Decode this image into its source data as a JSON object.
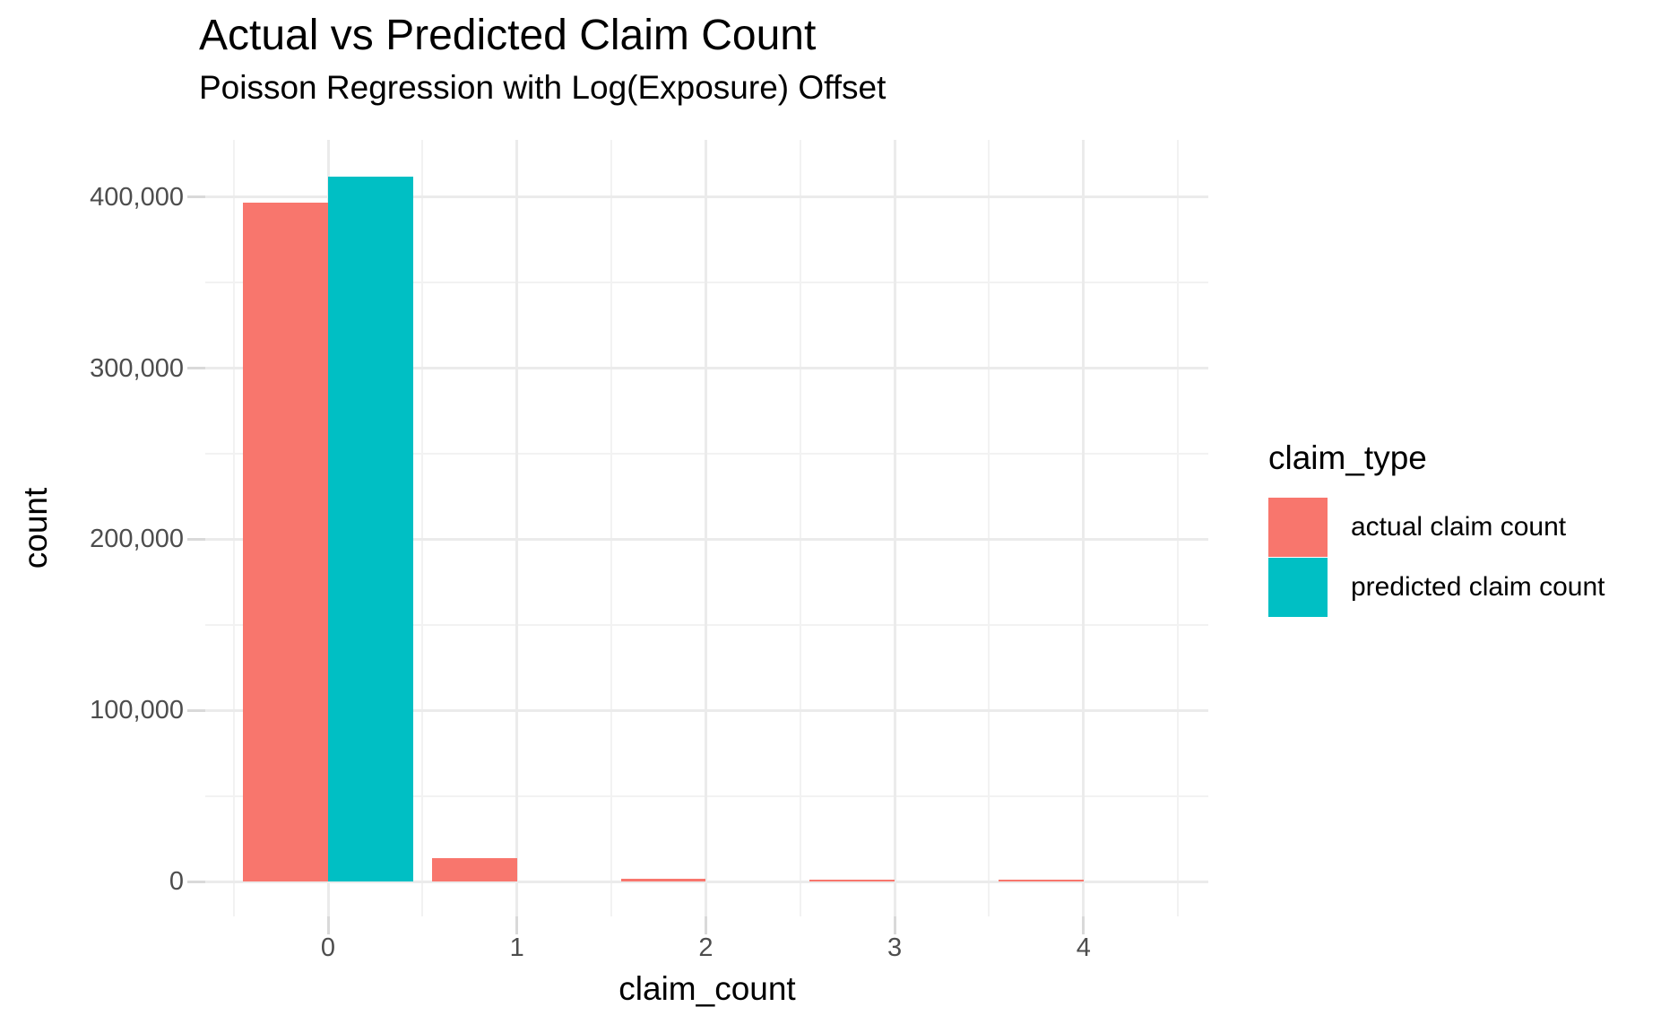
{
  "chart_data": {
    "type": "bar",
    "title": "Actual vs Predicted Claim Count",
    "subtitle": "Poisson Regression with Log(Exposure) Offset",
    "xlabel": "claim_count",
    "ylabel": "count",
    "categories": [
      0,
      1,
      2,
      3,
      4
    ],
    "series": [
      {
        "name": "actual claim count",
        "color": "#F8766D",
        "values": [
          397000,
          13600,
          1500,
          700,
          500
        ]
      },
      {
        "name": "predicted claim count",
        "color": "#00BFC4",
        "values": [
          412000,
          0,
          0,
          0,
          0
        ]
      }
    ],
    "legend_title": "claim_type",
    "legend_position": "right",
    "bar_width": 0.45,
    "dodge": true,
    "grid": true,
    "xlim": [
      -0.65,
      4.65
    ],
    "ylim": [
      0,
      433500
    ],
    "yticks": [
      0,
      100000,
      200000,
      300000,
      400000
    ],
    "ytick_labels": [
      "0",
      "100,000",
      "200,000",
      "300,000",
      "400,000"
    ],
    "xticks": [
      0,
      1,
      2,
      3,
      4
    ],
    "xtick_labels": [
      "0",
      "1",
      "2",
      "3",
      "4"
    ],
    "yminor": [
      50000,
      150000,
      250000,
      350000
    ],
    "xminor": [
      -0.5,
      0.5,
      1.5,
      2.5,
      3.5,
      4.5
    ]
  },
  "colors": {
    "background": "#FFFFFF",
    "grid_major": "#EBEBEB",
    "grid_minor": "#F2F2F2",
    "tick_mark": "#D9D9D9",
    "axis_text": "#4D4D4D",
    "text": "#000000"
  }
}
